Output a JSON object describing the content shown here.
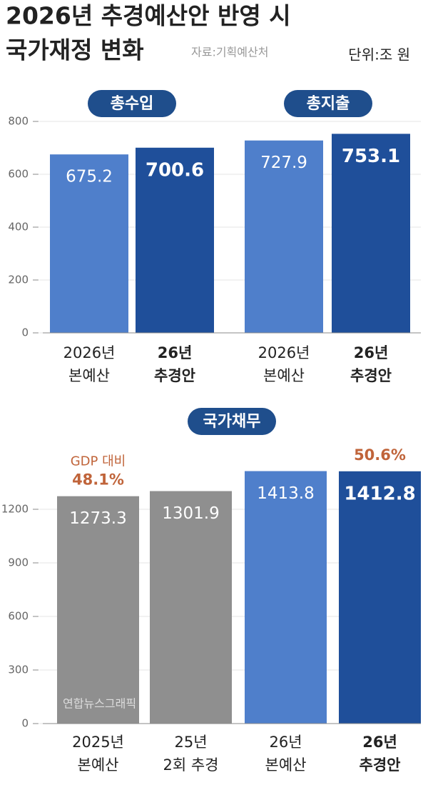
{
  "title": [
    "2026년 추경예산안 반영 시",
    "국가재정 변화"
  ],
  "source": "자료:기획예산처",
  "unit": "단위:조 원",
  "credit": "연합뉴스그래픽",
  "chart_data": [
    {
      "type": "bar",
      "title": "총수입",
      "categories": [
        [
          "2026년",
          "본예산"
        ],
        [
          "26년",
          "추경안"
        ]
      ],
      "values": [
        675.2,
        700.6
      ],
      "colors": [
        "#4f7fcb",
        "#1f4f9a"
      ],
      "bold": [
        false,
        true
      ],
      "ylim": [
        0,
        800
      ],
      "yticks": [
        0,
        200,
        400,
        600,
        800
      ],
      "grid": true
    },
    {
      "type": "bar",
      "title": "총지출",
      "categories": [
        [
          "2026년",
          "본예산"
        ],
        [
          "26년",
          "추경안"
        ]
      ],
      "values": [
        727.9,
        753.1
      ],
      "colors": [
        "#4f7fcb",
        "#1f4f9a"
      ],
      "bold": [
        false,
        true
      ],
      "ylim": [
        0,
        800
      ],
      "grid": true
    },
    {
      "type": "bar",
      "title": "국가채무",
      "categories": [
        [
          "2025년",
          "본예산"
        ],
        [
          "25년",
          "2회 추경"
        ],
        [
          "26년",
          "본예산"
        ],
        [
          "26년",
          "추경안"
        ]
      ],
      "values": [
        1273.3,
        1301.9,
        1413.8,
        1412.8
      ],
      "colors": [
        "#8f8f8f",
        "#8f8f8f",
        "#4f7fcb",
        "#1f4f9a"
      ],
      "bold": [
        false,
        false,
        false,
        true
      ],
      "ylim": [
        0,
        1440
      ],
      "yticks": [
        0,
        300,
        600,
        900,
        1200
      ],
      "grid": true,
      "gdp_ratio_label": "GDP 대비",
      "gdp_ratio": [
        48.1,
        null,
        null,
        50.6
      ],
      "gdp_ratio_labels": [
        "48.1%",
        null,
        null,
        "50.6%"
      ]
    }
  ]
}
